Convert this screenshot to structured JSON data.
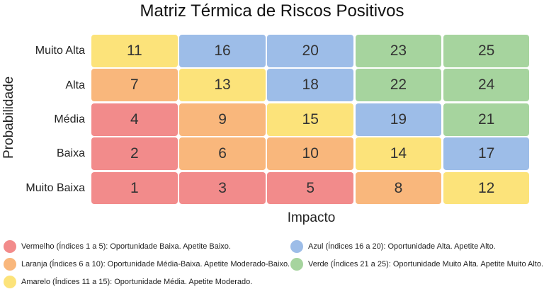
{
  "chart_data": {
    "type": "heatmap",
    "title": "Matriz Térmica de Riscos Positivos",
    "xlabel": "Impacto",
    "ylabel": "Probabilidade",
    "rows": [
      "Muito Alta",
      "Alta",
      "Média",
      "Baixa",
      "Muito Baixa"
    ],
    "values": [
      [
        11,
        16,
        20,
        23,
        25
      ],
      [
        7,
        13,
        18,
        22,
        24
      ],
      [
        4,
        9,
        15,
        19,
        21
      ],
      [
        2,
        6,
        10,
        14,
        17
      ],
      [
        1,
        3,
        5,
        8,
        12
      ]
    ],
    "color_scale": [
      {
        "min": 1,
        "max": 5,
        "color": "#f28b8b"
      },
      {
        "min": 6,
        "max": 10,
        "color": "#f9b77c"
      },
      {
        "min": 11,
        "max": 15,
        "color": "#fce37a"
      },
      {
        "min": 16,
        "max": 20,
        "color": "#9dbde8"
      },
      {
        "min": 21,
        "max": 25,
        "color": "#a6d49e"
      }
    ],
    "legend": [
      {
        "color": "#f28b8b",
        "text": "Vermelho (Índices 1 a 5): Oportunidade Baixa. Apetite Baixo."
      },
      {
        "color": "#f9b77c",
        "text": "Laranja (Índices 6 a 10): Oportunidade Média-Baixa. Apetite Moderado-Baixo."
      },
      {
        "color": "#fce37a",
        "text": "Amarelo (Índices 11 a 15): Oportunidade Média. Apetite Moderado."
      },
      {
        "color": "#9dbde8",
        "text": "Azul (Índices 16 a 20): Oportunidade Alta. Apetite Alto."
      },
      {
        "color": "#a6d49e",
        "text": "Verde (Índices 21 a 25): Oportunidade Muito Alta. Apetite Muito Alto."
      }
    ],
    "legend_position": "bottom"
  }
}
